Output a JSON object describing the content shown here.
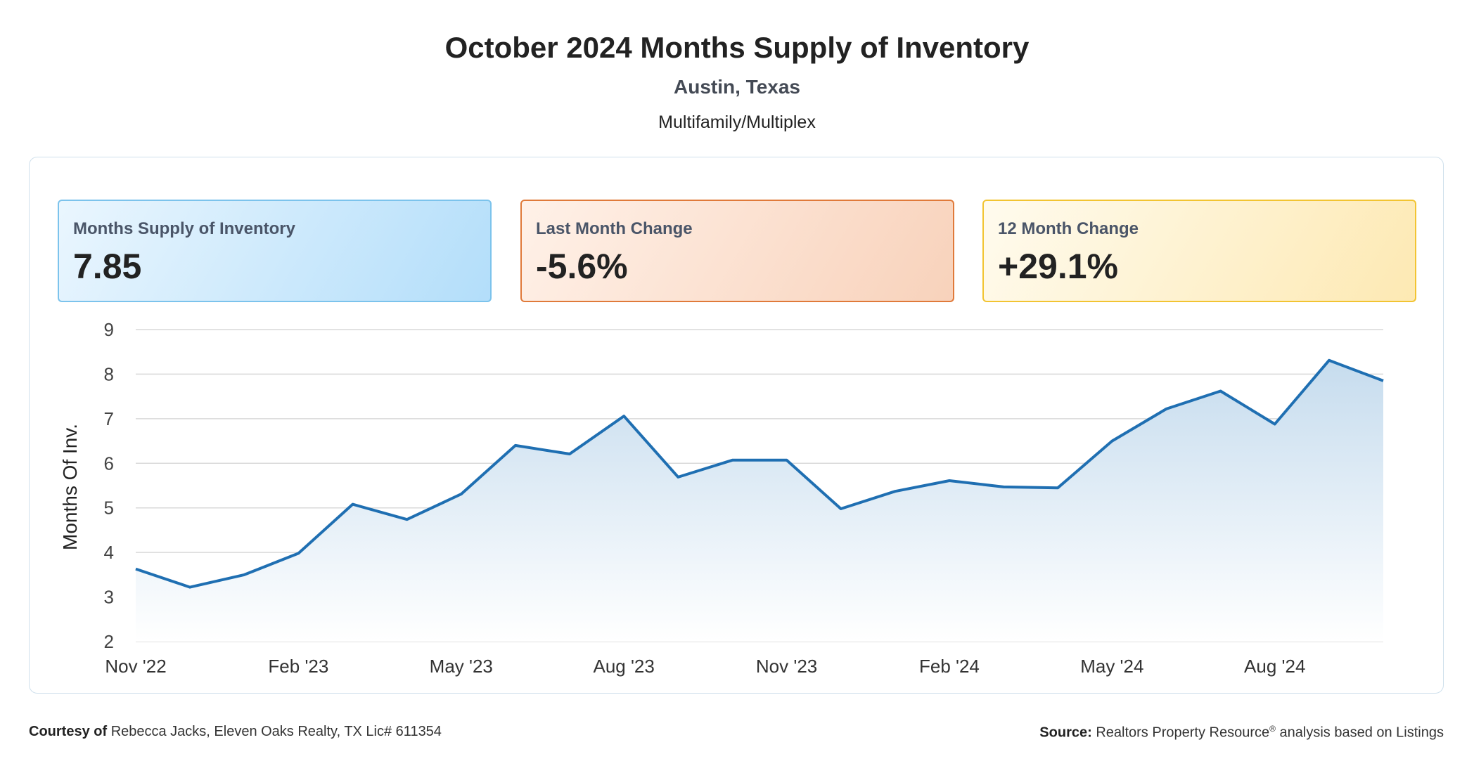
{
  "header": {
    "title": "October 2024 Months Supply of Inventory",
    "subtitle": "Austin, Texas",
    "segment": "Multifamily/Multiplex"
  },
  "cards": [
    {
      "label": "Months Supply of Inventory",
      "value": "7.85"
    },
    {
      "label": "Last Month Change",
      "value": "-5.6%"
    },
    {
      "label": "12 Month Change",
      "value": "+29.1%"
    }
  ],
  "footer": {
    "courtesy_label": "Courtesy of",
    "courtesy_text": "Rebecca Jacks, Eleven Oaks Realty, TX Lic# 611354",
    "source_label": "Source:",
    "source_text_1": "Realtors Property Resource",
    "source_reg": "®",
    "source_text_2": " analysis based on Listings"
  },
  "colors": {
    "line": "#1f6fb2",
    "area_top": "#c6dcee",
    "area_bottom": "#ffffff",
    "grid": "#d9d9d9"
  },
  "chart_data": {
    "type": "area",
    "ylabel": "Months Of Inv.",
    "xlabel": "",
    "ylim": [
      2,
      9
    ],
    "yticks": [
      2,
      3,
      4,
      5,
      6,
      7,
      8,
      9
    ],
    "grid": true,
    "x": [
      "Nov '22",
      "Dec '22",
      "Jan '23",
      "Feb '23",
      "Mar '23",
      "Apr '23",
      "May '23",
      "Jun '23",
      "Jul '23",
      "Aug '23",
      "Sep '23",
      "Oct '23",
      "Nov '23",
      "Dec '23",
      "Jan '24",
      "Feb '24",
      "Mar '24",
      "Apr '24",
      "May '24",
      "Jun '24",
      "Jul '24",
      "Aug '24",
      "Sep '24",
      "Oct '24"
    ],
    "xtick_labels": [
      "Nov '22",
      "Feb '23",
      "May '23",
      "Aug '23",
      "Nov '23",
      "Feb '24",
      "May '24",
      "Aug '24"
    ],
    "series": [
      {
        "values": [
          3.63,
          3.22,
          3.5,
          3.98,
          5.08,
          4.74,
          5.31,
          6.4,
          6.21,
          7.06,
          5.69,
          6.07,
          6.07,
          4.98,
          5.37,
          5.61,
          5.47,
          5.45,
          6.5,
          7.22,
          7.62,
          6.88,
          8.31,
          7.85
        ]
      }
    ]
  }
}
